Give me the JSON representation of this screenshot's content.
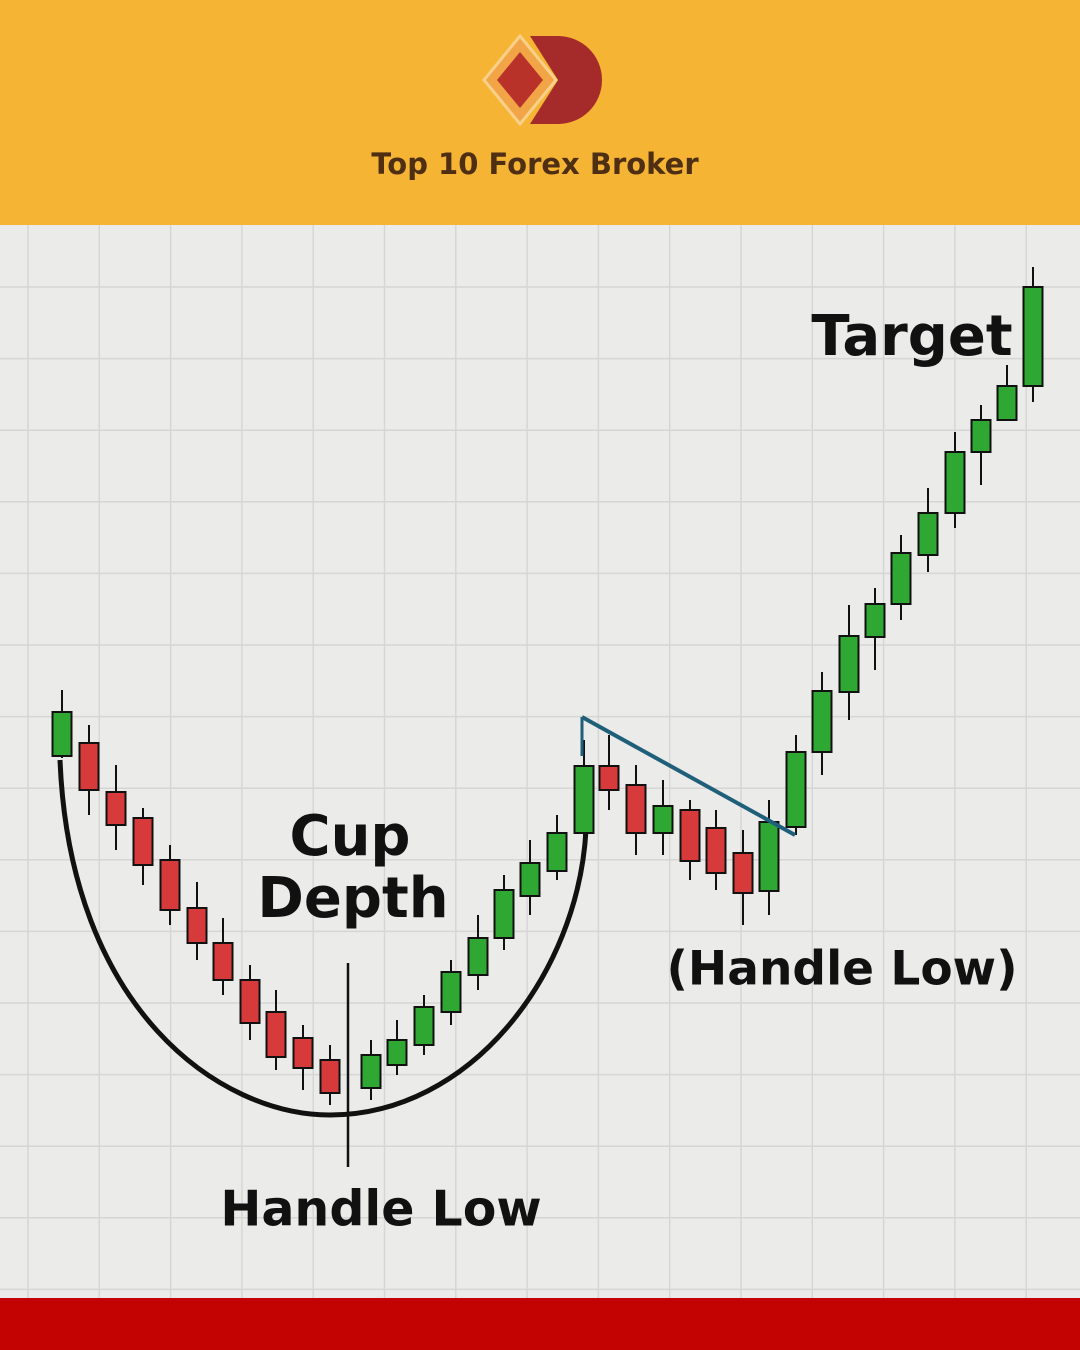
{
  "header": {
    "title": "Top 10 Forex Broker"
  },
  "labels": {
    "target": "Target",
    "cup": "Cup",
    "depth": "Depth",
    "handle_low_paren": "(Handle Low)",
    "handle_low": "Handle Low"
  }
}
